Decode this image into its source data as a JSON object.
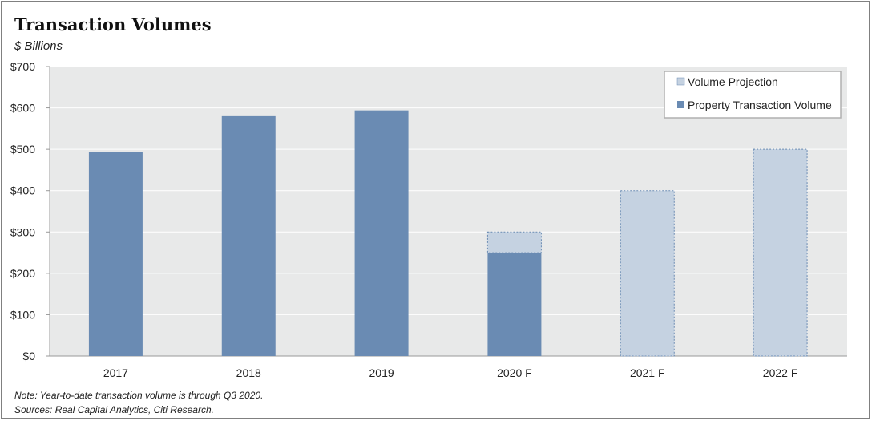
{
  "title": "Transaction Volumes",
  "subtitle": "$ Billions",
  "notes": [
    "Note: Year-to-date transaction volume is through Q3 2020.",
    "Sources: Real Capital Analytics, Citi Research."
  ],
  "colors": {
    "actual": "#6a8bb3",
    "projection": "#c5d2e1",
    "projection_border": "#6a8bb3",
    "plot_bg": "#e8e9e9",
    "grid": "#ffffff"
  },
  "chart_data": {
    "type": "bar",
    "stacked": true,
    "categories": [
      "2017",
      "2018",
      "2019",
      "2020 F",
      "2021 F",
      "2022 F"
    ],
    "series": [
      {
        "name": "Property Transaction Volume",
        "values": [
          493,
          580,
          594,
          250,
          0,
          0
        ]
      },
      {
        "name": "Volume Projection",
        "values": [
          0,
          0,
          0,
          50,
          400,
          500
        ]
      }
    ],
    "ylim": [
      0,
      700
    ],
    "yticks": [
      0,
      100,
      200,
      300,
      400,
      500,
      600,
      700
    ],
    "ytick_labels": [
      "$0",
      "$100",
      "$200",
      "$300",
      "$400",
      "$500",
      "$600",
      "$700"
    ],
    "legend": {
      "placement": "top-right",
      "entries": [
        "Volume Projection",
        "Property Transaction Volume"
      ]
    },
    "grid": true
  }
}
